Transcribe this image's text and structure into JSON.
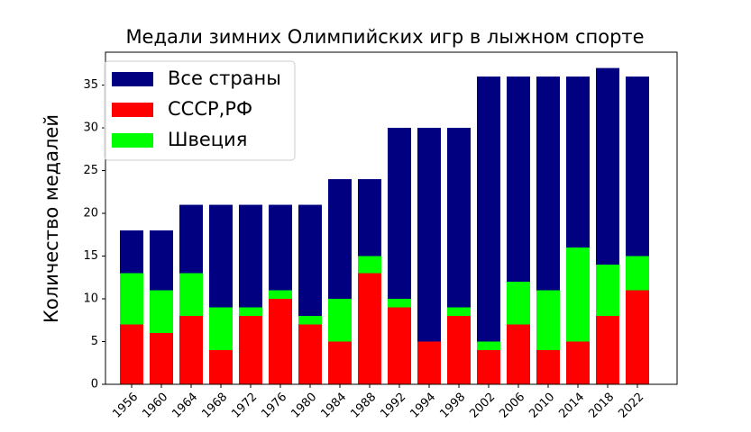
{
  "chart_data": {
    "type": "bar",
    "title": "Медали зимних Олимпийских игр в лыжном спорте",
    "ylabel": "Количество медалей",
    "categories": [
      "1956",
      "1960",
      "1964",
      "1968",
      "1972",
      "1976",
      "1980",
      "1984",
      "1988",
      "1992",
      "1994",
      "1998",
      "2002",
      "2006",
      "2010",
      "2014",
      "2018",
      "2022"
    ],
    "series": [
      {
        "name": "Все страны",
        "color": "#000080",
        "values": [
          18,
          18,
          21,
          21,
          21,
          21,
          21,
          24,
          24,
          30,
          30,
          30,
          36,
          36,
          36,
          36,
          37,
          36
        ]
      },
      {
        "name": "СССР,РФ",
        "color": "#ff0000",
        "values": [
          7,
          6,
          8,
          4,
          8,
          10,
          7,
          5,
          13,
          9,
          5,
          8,
          4,
          7,
          4,
          5,
          8,
          11
        ]
      },
      {
        "name": "Швеция",
        "color": "#00ff00",
        "values": [
          6,
          5,
          5,
          5,
          1,
          1,
          1,
          5,
          2,
          1,
          0,
          1,
          1,
          5,
          7,
          11,
          6,
          4
        ]
      }
    ],
    "ylim": [
      0,
      38.85
    ],
    "yticks": [
      0,
      5,
      10,
      15,
      20,
      25,
      30,
      35
    ],
    "legend": "upper left"
  }
}
